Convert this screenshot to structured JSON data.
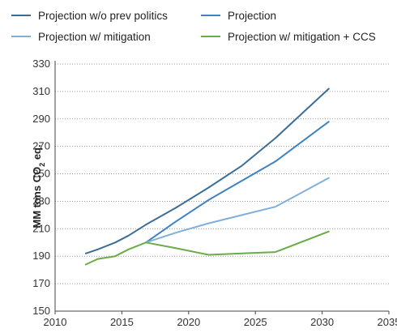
{
  "chart_data": {
    "type": "line",
    "ylabel": "MM tons CO",
    "ylabel_sub": "2",
    "ylabel_suffix": " eq.",
    "xlim": [
      2010,
      2035
    ],
    "ylim": [
      150,
      330
    ],
    "x_ticks": [
      2010,
      2015,
      2020,
      2025,
      2030,
      2035
    ],
    "y_ticks": [
      150,
      170,
      190,
      210,
      230,
      250,
      270,
      290,
      310,
      330
    ],
    "grid": "horizontal dotted",
    "legend": "top",
    "series": [
      {
        "name": "Projection w/o prev politics",
        "color": "#3b6e96",
        "points": [
          [
            2012.3,
            192
          ],
          [
            2013.2,
            195
          ],
          [
            2014.5,
            200
          ],
          [
            2015.5,
            205
          ],
          [
            2016.8,
            213
          ],
          [
            2019,
            225
          ],
          [
            2021.5,
            240
          ],
          [
            2024,
            256
          ],
          [
            2026.5,
            276
          ],
          [
            2030.5,
            312
          ]
        ]
      },
      {
        "name": "Projection",
        "color": "#3f82c0",
        "points": [
          [
            2016.8,
            200
          ],
          [
            2019,
            215
          ],
          [
            2021.5,
            231
          ],
          [
            2024,
            245
          ],
          [
            2026.5,
            259
          ],
          [
            2030.5,
            288
          ]
        ]
      },
      {
        "name": "Projection w/ mitigation",
        "color": "#7fb0da",
        "points": [
          [
            2016.8,
            200
          ],
          [
            2019,
            207
          ],
          [
            2021.5,
            214
          ],
          [
            2024,
            220
          ],
          [
            2026.5,
            226
          ],
          [
            2030.5,
            247
          ]
        ]
      },
      {
        "name": "Projection w/ mitigation + CCS",
        "color": "#6aac47",
        "points": [
          [
            2012.3,
            184
          ],
          [
            2013.2,
            188
          ],
          [
            2014.5,
            190
          ],
          [
            2015.5,
            195
          ],
          [
            2016.8,
            200
          ],
          [
            2019,
            196
          ],
          [
            2021.5,
            191
          ],
          [
            2024,
            192
          ],
          [
            2026.5,
            193
          ],
          [
            2030.5,
            208
          ]
        ]
      }
    ]
  }
}
